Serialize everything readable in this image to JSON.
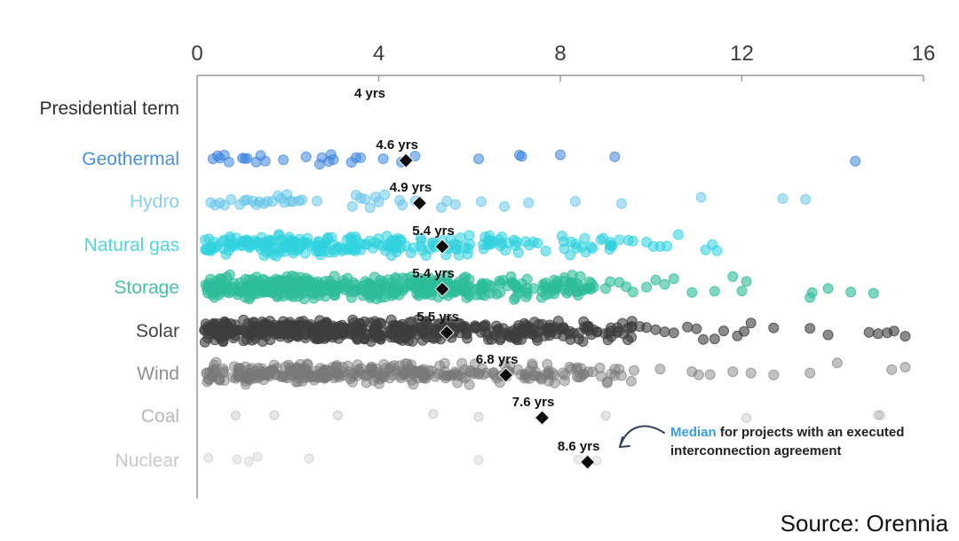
{
  "source": {
    "label": "Source: Orennia"
  },
  "annotation": {
    "highlight": "Median",
    "line1_rest": " for projects with an executed",
    "line2": "interconnection agreement",
    "highlight_color": "#3b9ee2",
    "text_color": "#222222",
    "arrow_color": "#33415c"
  },
  "chart_data": {
    "type": "strip",
    "title": "",
    "unit": "yrs",
    "x_axis": {
      "min": 0,
      "max": 16,
      "ticks": [
        0,
        4,
        8,
        12,
        16
      ]
    },
    "axis_color": "#999999",
    "median_marker_color": "#0a0a0a",
    "categories": [
      {
        "label": "Presidential term",
        "label_color": "#2f2f2f",
        "text_only": true,
        "median": 4,
        "median_label": "4 yrs"
      },
      {
        "label": "Geothermal",
        "label_color": "#4a8fd9",
        "dot_color": "#3e86e0",
        "dot_opacity": 0.55,
        "median": 4.6,
        "median_label": "4.6 yrs",
        "band": 8,
        "radius": 5.5,
        "points": [
          0.35,
          0.45,
          0.5,
          0.6,
          0.7,
          1.0,
          1.05,
          1.1,
          1.3,
          1.4,
          1.5,
          1.9,
          2.4,
          2.7,
          2.75,
          2.9,
          2.95,
          3.0,
          3.4,
          3.5,
          3.6,
          4.1,
          4.5,
          4.8,
          6.2,
          7.1,
          7.15,
          8.0,
          9.2,
          14.5
        ]
      },
      {
        "label": "Hydro",
        "label_color": "#85d2ec",
        "dot_color": "#5fc3e9",
        "dot_opacity": 0.5,
        "median": 4.9,
        "median_label": "4.9 yrs",
        "band": 9,
        "radius": 5.5,
        "points": [
          0.3,
          0.4,
          0.5,
          0.6,
          0.75,
          0.94,
          1.04,
          1.1,
          1.23,
          1.3,
          1.37,
          1.47,
          1.55,
          1.66,
          1.78,
          1.85,
          1.92,
          1.98,
          2.05,
          2.11,
          2.25,
          2.31,
          2.64,
          3.42,
          3.5,
          3.6,
          3.7,
          3.81,
          3.93,
          4.0,
          4.13,
          4.46,
          4.52,
          4.81,
          5.38,
          5.5,
          5.69,
          6.26,
          6.77,
          7.3,
          8.33,
          9.35,
          11.1,
          12.9,
          13.4
        ]
      },
      {
        "label": "Natural gas",
        "label_color": "#4fd6de",
        "dot_color": "#2fd2de",
        "dot_opacity": 0.55,
        "median": 5.4,
        "median_label": "5.4 yrs",
        "band": 13,
        "radius": 5.5,
        "segments": [
          {
            "from": 0.15,
            "to": 2.5,
            "count": 95
          },
          {
            "from": 2.5,
            "to": 5,
            "count": 75
          },
          {
            "from": 5,
            "to": 6.6,
            "count": 32
          },
          {
            "from": 6.6,
            "to": 7.6,
            "count": 14
          },
          {
            "from": 7.6,
            "to": 9.15,
            "count": 20
          }
        ],
        "outliers": [
          9.3,
          9.5,
          9.6,
          9.9,
          10.05,
          10.2,
          10.35,
          10.6,
          11.2,
          11.35,
          11.45
        ]
      },
      {
        "label": "Storage",
        "label_color": "#47c3a3",
        "dot_color": "#2dbd9a",
        "dot_opacity": 0.6,
        "median": 5.4,
        "median_label": "5.4 yrs",
        "band": 15,
        "radius": 5.5,
        "segments": [
          {
            "from": 0.15,
            "to": 3,
            "count": 185
          },
          {
            "from": 3,
            "to": 6,
            "count": 155
          },
          {
            "from": 6,
            "to": 8.75,
            "count": 85
          }
        ],
        "outliers": [
          9.0,
          9.1,
          9.3,
          9.45,
          9.6,
          9.9,
          10.1,
          10.3,
          10.5,
          10.9,
          11.4,
          11.8,
          12.0,
          12.1,
          13.5,
          13.55,
          13.9,
          14.4,
          14.9
        ]
      },
      {
        "label": "Solar",
        "label_color": "#454545",
        "dot_color": "#3d3d3d",
        "dot_opacity": 0.6,
        "median": 5.5,
        "median_label": "5.5 yrs",
        "band": 14,
        "radius": 5.5,
        "segments": [
          {
            "from": 0.15,
            "to": 3,
            "count": 200
          },
          {
            "from": 3,
            "to": 6,
            "count": 165
          },
          {
            "from": 6,
            "to": 9,
            "count": 95
          },
          {
            "from": 9,
            "to": 9.6,
            "count": 16
          }
        ],
        "outliers": [
          9.75,
          9.9,
          10.1,
          10.3,
          10.5,
          10.8,
          11.0,
          11.15,
          11.4,
          11.6,
          11.9,
          12.05,
          12.2,
          12.7,
          13.5,
          13.9,
          14.8,
          15.0,
          15.2,
          15.35,
          15.6
        ]
      },
      {
        "label": "Wind",
        "label_color": "#909090",
        "dot_color": "#787878",
        "dot_opacity": 0.45,
        "median": 6.8,
        "median_label": "6.8 yrs",
        "band": 13,
        "radius": 5.5,
        "segments": [
          {
            "from": 0.15,
            "to": 3,
            "count": 145
          },
          {
            "from": 3,
            "to": 6,
            "count": 115
          },
          {
            "from": 6,
            "to": 8,
            "count": 48
          },
          {
            "from": 8,
            "to": 9.7,
            "count": 26
          }
        ],
        "outliers": [
          10.2,
          10.9,
          11.05,
          11.3,
          11.8,
          12.2,
          12.7,
          13.5,
          14.1,
          15.3,
          15.6
        ]
      },
      {
        "label": "Coal",
        "label_color": "#b8b8b8",
        "dot_color": "#9a9a9a",
        "dot_opacity": 0.25,
        "median": 7.6,
        "median_label": "7.6 yrs",
        "band": 3,
        "radius": 5,
        "points": [
          0.85,
          1.7,
          3.1,
          5.2,
          6.2,
          9.0,
          12.1,
          15.0,
          15.05
        ]
      },
      {
        "label": "Nuclear",
        "label_color": "#c9c9c9",
        "dot_color": "#aaaaaa",
        "dot_opacity": 0.22,
        "median": 8.6,
        "median_label": "8.6 yrs",
        "band": 4,
        "radius": 5,
        "points": [
          0.25,
          0.88,
          1.14,
          1.33,
          2.47,
          6.2,
          8.4,
          8.8
        ]
      }
    ]
  }
}
